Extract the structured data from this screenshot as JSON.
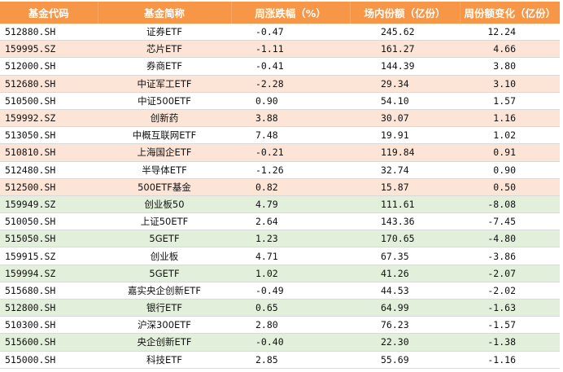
{
  "table": {
    "headers": [
      "基金代码",
      "基金简称",
      "周涨跌幅（%）",
      "场内份额（亿份）",
      "周份额变化（亿份）"
    ],
    "colors": {
      "header_bg": "#f79646",
      "header_text": "#ffffff",
      "positive_row_bg": "#fce4d6",
      "negative_row_bg": "#e2efda",
      "plain_row_bg": "#ffffff"
    },
    "rows": [
      {
        "code": "512880.SH",
        "name": "证券ETF",
        "week_change_pct": "-0.47",
        "shares": "245.62",
        "week_share_change": "12.24",
        "tone": "plain"
      },
      {
        "code": "159995.SZ",
        "name": "芯片ETF",
        "week_change_pct": "-1.11",
        "shares": "161.27",
        "week_share_change": "4.66",
        "tone": "pos"
      },
      {
        "code": "512000.SH",
        "name": "券商ETF",
        "week_change_pct": "-0.41",
        "shares": "144.39",
        "week_share_change": "3.80",
        "tone": "plain"
      },
      {
        "code": "512680.SH",
        "name": "中证军工ETF",
        "week_change_pct": "-2.28",
        "shares": "29.34",
        "week_share_change": "3.10",
        "tone": "pos"
      },
      {
        "code": "510500.SH",
        "name": "中证500ETF",
        "week_change_pct": "0.90",
        "shares": "54.10",
        "week_share_change": "1.57",
        "tone": "plain"
      },
      {
        "code": "159992.SZ",
        "name": "创新药",
        "week_change_pct": "3.88",
        "shares": "30.07",
        "week_share_change": "1.16",
        "tone": "pos"
      },
      {
        "code": "513050.SH",
        "name": "中概互联网ETF",
        "week_change_pct": "7.48",
        "shares": "19.91",
        "week_share_change": "1.02",
        "tone": "plain"
      },
      {
        "code": "510810.SH",
        "name": "上海国企ETF",
        "week_change_pct": "-0.21",
        "shares": "119.84",
        "week_share_change": "0.91",
        "tone": "pos"
      },
      {
        "code": "512480.SH",
        "name": "半导体ETF",
        "week_change_pct": "-1.26",
        "shares": "32.74",
        "week_share_change": "0.90",
        "tone": "plain"
      },
      {
        "code": "512500.SH",
        "name": "500ETF基金",
        "week_change_pct": "0.82",
        "shares": "15.87",
        "week_share_change": "0.50",
        "tone": "pos"
      },
      {
        "code": "159949.SZ",
        "name": "创业板50",
        "week_change_pct": "4.79",
        "shares": "111.61",
        "week_share_change": "-8.08",
        "tone": "neg"
      },
      {
        "code": "510050.SH",
        "name": "上证50ETF",
        "week_change_pct": "2.64",
        "shares": "143.36",
        "week_share_change": "-7.45",
        "tone": "plain"
      },
      {
        "code": "515050.SH",
        "name": "5GETF",
        "week_change_pct": "1.23",
        "shares": "170.65",
        "week_share_change": "-4.80",
        "tone": "neg"
      },
      {
        "code": "159915.SZ",
        "name": "创业板",
        "week_change_pct": "4.71",
        "shares": "67.35",
        "week_share_change": "-3.86",
        "tone": "plain"
      },
      {
        "code": "159994.SZ",
        "name": "5GETF",
        "week_change_pct": "1.02",
        "shares": "41.26",
        "week_share_change": "-2.07",
        "tone": "neg"
      },
      {
        "code": "515680.SH",
        "name": "嘉实央企创新ETF",
        "week_change_pct": "-0.49",
        "shares": "44.53",
        "week_share_change": "-2.02",
        "tone": "plain"
      },
      {
        "code": "512800.SH",
        "name": "银行ETF",
        "week_change_pct": "0.65",
        "shares": "64.99",
        "week_share_change": "-1.63",
        "tone": "neg"
      },
      {
        "code": "510300.SH",
        "name": "沪深300ETF",
        "week_change_pct": "2.80",
        "shares": "76.23",
        "week_share_change": "-1.57",
        "tone": "plain"
      },
      {
        "code": "515600.SH",
        "name": "央企创新ETF",
        "week_change_pct": "-0.40",
        "shares": "22.30",
        "week_share_change": "-1.38",
        "tone": "neg"
      },
      {
        "code": "515000.SH",
        "name": "科技ETF",
        "week_change_pct": "2.85",
        "shares": "55.69",
        "week_share_change": "-1.16",
        "tone": "plain"
      }
    ]
  }
}
